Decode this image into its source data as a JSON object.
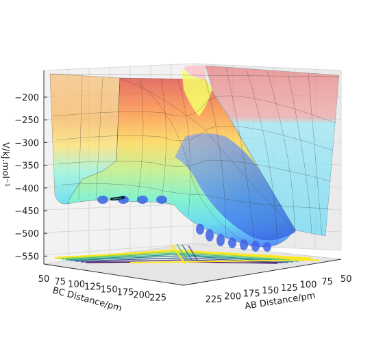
{
  "chart_data": {
    "type": "surface3d",
    "title": "",
    "xlabel": "AB Distance/pm",
    "ylabel": "BC Distance/pm",
    "zlabel": "V/kJ.mol⁻¹",
    "x_ticks": [
      "225",
      "200",
      "175",
      "150",
      "125",
      "100",
      "75",
      "50"
    ],
    "y_ticks": [
      "50",
      "75",
      "100",
      "125",
      "150",
      "175",
      "200",
      "225"
    ],
    "z_ticks": [
      "−200",
      "−250",
      "−300",
      "−350",
      "−400",
      "−450",
      "−500",
      "−550"
    ],
    "z_range": [
      -560,
      -180
    ],
    "grid": true,
    "colormap_bands": [
      "#e85a5a",
      "#ffa24a",
      "#ffe05a",
      "#c6f56f",
      "#5ff5c3",
      "#45d8f5",
      "#3a7cff"
    ],
    "contour_colormap": "viridis",
    "trajectory_color": "#101010"
  }
}
